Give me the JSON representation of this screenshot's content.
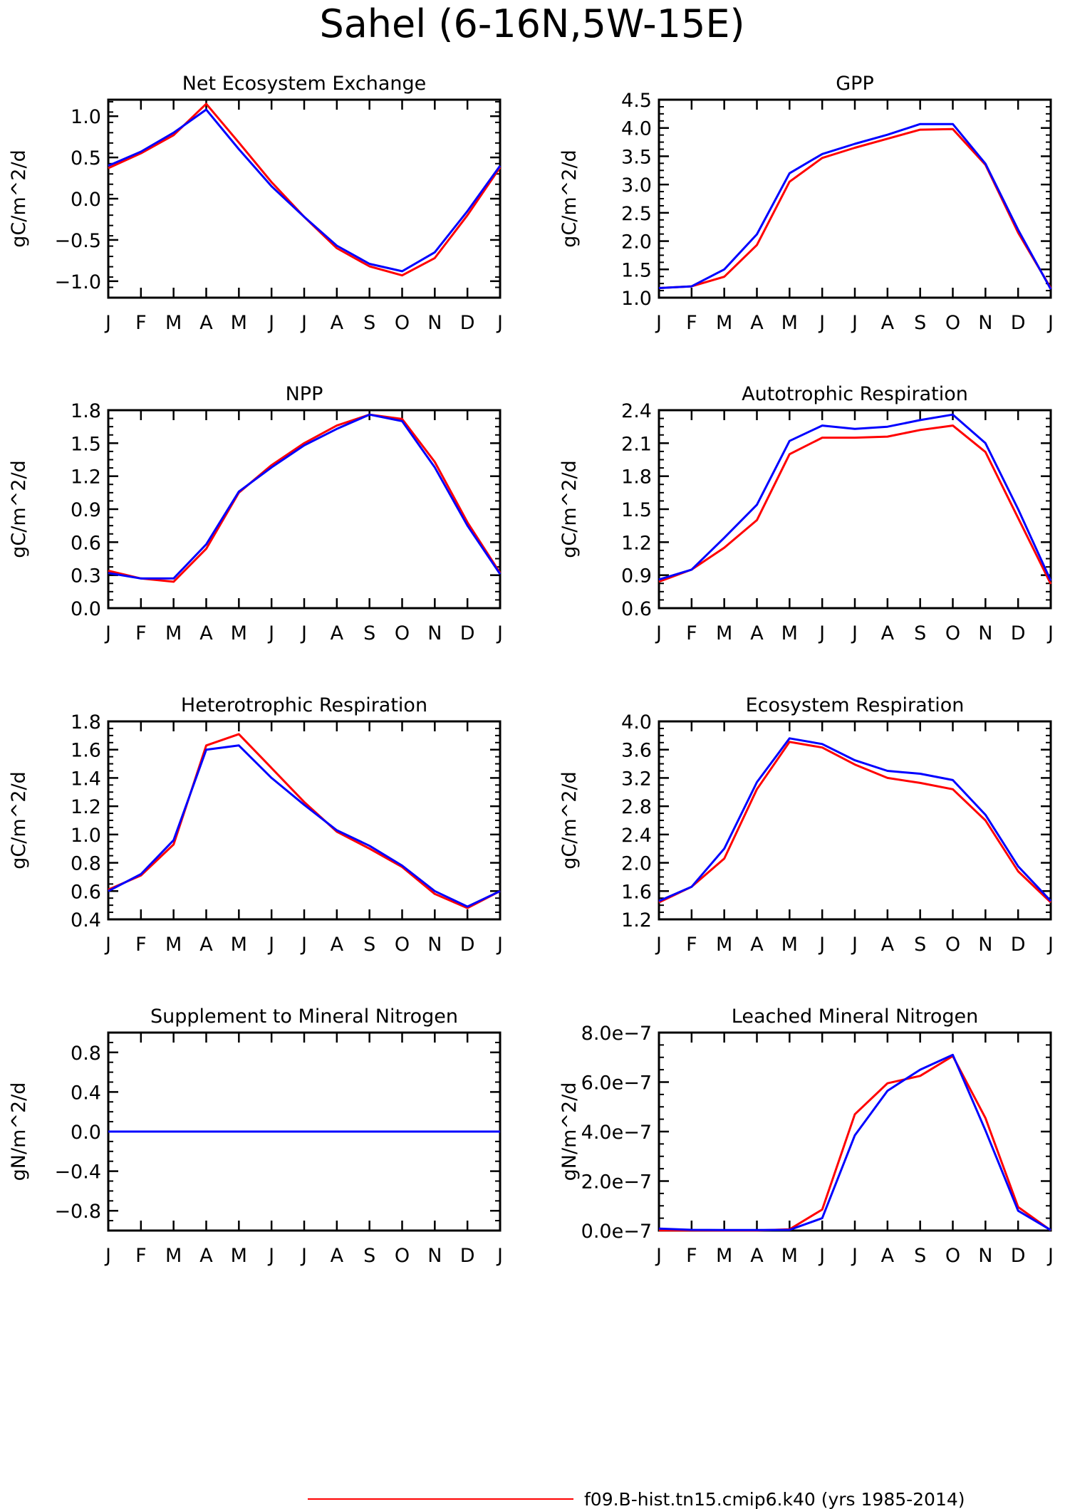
{
  "page_title": "Sahel (6-16N,5W-15E)",
  "legend": {
    "entries": [
      {
        "label": "f09.B-hist.tn15.cmip6.k40 (yrs 1985-2014)",
        "color": "#ff0000"
      }
    ]
  },
  "months": [
    "J",
    "F",
    "M",
    "A",
    "M",
    "J",
    "J",
    "A",
    "S",
    "O",
    "N",
    "D",
    "J"
  ],
  "chart_data": [
    {
      "type": "line",
      "title": "Net Ecosystem Exchange",
      "ylabel": "gC/m^2/d",
      "ylim": [
        -1.2,
        1.2
      ],
      "yticks": [
        -1.0,
        -0.5,
        0.0,
        0.5,
        1.0
      ],
      "ytick_labels": [
        "−1.0",
        "−0.5",
        "0.0",
        "0.5",
        "1.0"
      ],
      "categories": [
        "J",
        "F",
        "M",
        "A",
        "M",
        "J",
        "J",
        "A",
        "S",
        "O",
        "N",
        "D",
        "J"
      ],
      "series": [
        {
          "color": "#ff0000",
          "values": [
            0.37,
            0.55,
            0.77,
            1.15,
            0.68,
            0.2,
            -0.22,
            -0.6,
            -0.82,
            -0.93,
            -0.72,
            -0.2,
            0.38
          ]
        },
        {
          "color": "#0000ff",
          "values": [
            0.4,
            0.57,
            0.8,
            1.08,
            0.6,
            0.15,
            -0.22,
            -0.57,
            -0.79,
            -0.88,
            -0.65,
            -0.15,
            0.4
          ]
        }
      ]
    },
    {
      "type": "line",
      "title": "GPP",
      "ylabel": "gC/m^2/d",
      "ylim": [
        1.0,
        4.5
      ],
      "yticks": [
        1.0,
        1.5,
        2.0,
        2.5,
        3.0,
        3.5,
        4.0,
        4.5
      ],
      "ytick_labels": [
        "1.0",
        "1.5",
        "2.0",
        "2.5",
        "3.0",
        "3.5",
        "4.0",
        "4.5"
      ],
      "categories": [
        "J",
        "F",
        "M",
        "A",
        "M",
        "J",
        "J",
        "A",
        "S",
        "O",
        "N",
        "D",
        "J"
      ],
      "series": [
        {
          "color": "#ff0000",
          "values": [
            1.17,
            1.2,
            1.37,
            1.93,
            3.05,
            3.47,
            3.65,
            3.81,
            3.97,
            3.98,
            3.35,
            2.15,
            1.17
          ]
        },
        {
          "color": "#0000ff",
          "values": [
            1.17,
            1.2,
            1.5,
            2.12,
            3.2,
            3.54,
            3.72,
            3.88,
            4.07,
            4.07,
            3.37,
            2.2,
            1.15
          ]
        }
      ]
    },
    {
      "type": "line",
      "title": "NPP",
      "ylabel": "gC/m^2/d",
      "ylim": [
        0.0,
        1.8
      ],
      "yticks": [
        0.0,
        0.3,
        0.6,
        0.9,
        1.2,
        1.5,
        1.8
      ],
      "ytick_labels": [
        "0.0",
        "0.3",
        "0.6",
        "0.9",
        "1.2",
        "1.5",
        "1.8"
      ],
      "categories": [
        "J",
        "F",
        "M",
        "A",
        "M",
        "J",
        "J",
        "A",
        "S",
        "O",
        "N",
        "D",
        "J"
      ],
      "series": [
        {
          "color": "#ff0000",
          "values": [
            0.34,
            0.27,
            0.24,
            0.54,
            1.05,
            1.3,
            1.5,
            1.66,
            1.76,
            1.72,
            1.33,
            0.78,
            0.32
          ]
        },
        {
          "color": "#0000ff",
          "values": [
            0.32,
            0.27,
            0.27,
            0.58,
            1.06,
            1.28,
            1.48,
            1.63,
            1.76,
            1.7,
            1.28,
            0.75,
            0.31
          ]
        }
      ]
    },
    {
      "type": "line",
      "title": "Autotrophic Respiration",
      "ylabel": "gC/m^2/d",
      "ylim": [
        0.6,
        2.4
      ],
      "yticks": [
        0.6,
        0.9,
        1.2,
        1.5,
        1.8,
        2.1,
        2.4
      ],
      "ytick_labels": [
        "0.6",
        "0.9",
        "1.2",
        "1.5",
        "1.8",
        "2.1",
        "2.4"
      ],
      "categories": [
        "J",
        "F",
        "M",
        "A",
        "M",
        "J",
        "J",
        "A",
        "S",
        "O",
        "N",
        "D",
        "J"
      ],
      "series": [
        {
          "color": "#ff0000",
          "values": [
            0.84,
            0.95,
            1.15,
            1.4,
            2.0,
            2.15,
            2.15,
            2.16,
            2.22,
            2.26,
            2.02,
            1.42,
            0.82
          ]
        },
        {
          "color": "#0000ff",
          "values": [
            0.86,
            0.95,
            1.24,
            1.54,
            2.12,
            2.26,
            2.23,
            2.25,
            2.31,
            2.36,
            2.1,
            1.5,
            0.85
          ]
        }
      ]
    },
    {
      "type": "line",
      "title": "Heterotrophic Respiration",
      "ylabel": "gC/m^2/d",
      "ylim": [
        0.4,
        1.8
      ],
      "yticks": [
        0.4,
        0.6,
        0.8,
        1.0,
        1.2,
        1.4,
        1.6,
        1.8
      ],
      "ytick_labels": [
        "0.4",
        "0.6",
        "0.8",
        "1.0",
        "1.2",
        "1.4",
        "1.6",
        "1.8"
      ],
      "categories": [
        "J",
        "F",
        "M",
        "A",
        "M",
        "J",
        "J",
        "A",
        "S",
        "O",
        "N",
        "D",
        "J"
      ],
      "series": [
        {
          "color": "#ff0000",
          "values": [
            0.61,
            0.71,
            0.93,
            1.63,
            1.71,
            1.47,
            1.23,
            1.02,
            0.9,
            0.77,
            0.58,
            0.48,
            0.6
          ]
        },
        {
          "color": "#0000ff",
          "values": [
            0.6,
            0.72,
            0.96,
            1.6,
            1.63,
            1.4,
            1.21,
            1.03,
            0.92,
            0.78,
            0.6,
            0.49,
            0.6
          ]
        }
      ]
    },
    {
      "type": "line",
      "title": "Ecosystem Respiration",
      "ylabel": "gC/m^2/d",
      "ylim": [
        1.2,
        4.0
      ],
      "yticks": [
        1.2,
        1.6,
        2.0,
        2.4,
        2.8,
        3.2,
        3.6,
        4.0
      ],
      "ytick_labels": [
        "1.2",
        "1.6",
        "2.0",
        "2.4",
        "2.8",
        "3.2",
        "3.6",
        "4.0"
      ],
      "categories": [
        "J",
        "F",
        "M",
        "A",
        "M",
        "J",
        "J",
        "A",
        "S",
        "O",
        "N",
        "D",
        "J"
      ],
      "series": [
        {
          "color": "#ff0000",
          "values": [
            1.44,
            1.66,
            2.06,
            3.04,
            3.71,
            3.63,
            3.39,
            3.2,
            3.13,
            3.04,
            2.6,
            1.88,
            1.44
          ]
        },
        {
          "color": "#0000ff",
          "values": [
            1.46,
            1.66,
            2.2,
            3.14,
            3.76,
            3.68,
            3.45,
            3.3,
            3.26,
            3.17,
            2.68,
            1.95,
            1.46
          ]
        }
      ]
    },
    {
      "type": "line",
      "title": "Supplement to Mineral Nitrogen",
      "ylabel": "gN/m^2/d",
      "ylim": [
        -1.0,
        1.0
      ],
      "yticks": [
        -0.8,
        -0.4,
        0.0,
        0.4,
        0.8
      ],
      "ytick_labels": [
        "−0.8",
        "−0.4",
        "0.0",
        "0.4",
        "0.8"
      ],
      "categories": [
        "J",
        "F",
        "M",
        "A",
        "M",
        "J",
        "J",
        "A",
        "S",
        "O",
        "N",
        "D",
        "J"
      ],
      "series": [
        {
          "color": "#ff0000",
          "values": [
            0,
            0,
            0,
            0,
            0,
            0,
            0,
            0,
            0,
            0,
            0,
            0,
            0
          ]
        },
        {
          "color": "#0000ff",
          "values": [
            0,
            0,
            0,
            0,
            0,
            0,
            0,
            0,
            0,
            0,
            0,
            0,
            0
          ]
        }
      ]
    },
    {
      "type": "line",
      "title": "Leached Mineral Nitrogen",
      "ylabel": "gN/m^2/d",
      "ylim": [
        0.0,
        8e-07
      ],
      "yticks": [
        0.0,
        2e-07,
        4e-07,
        6e-07,
        8e-07
      ],
      "ytick_labels": [
        "0.0e−7",
        "2.0e−7",
        "4.0e−7",
        "6.0e−7",
        "8.0e−7"
      ],
      "categories": [
        "J",
        "F",
        "M",
        "A",
        "M",
        "J",
        "J",
        "A",
        "S",
        "O",
        "N",
        "D",
        "J"
      ],
      "series": [
        {
          "color": "#ff0000",
          "values": [
            1e-09,
            5e-10,
            2e-10,
            2e-10,
            5e-09,
            8.5e-08,
            4.7e-07,
            5.95e-07,
            6.25e-07,
            7.05e-07,
            4.55e-07,
            9.5e-08,
            1e-09
          ]
        },
        {
          "color": "#0000ff",
          "values": [
            8e-09,
            3e-09,
            2e-09,
            2e-09,
            3e-09,
            5e-08,
            3.85e-07,
            5.65e-07,
            6.5e-07,
            7.1e-07,
            4.05e-07,
            8e-08,
            2e-09
          ]
        }
      ]
    }
  ]
}
